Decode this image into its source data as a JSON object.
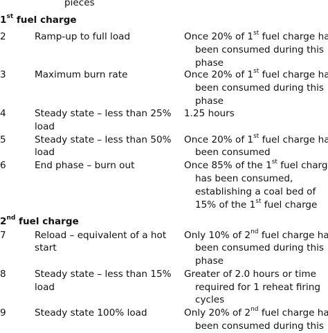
{
  "top_fragment": "pieces",
  "sections": [
    {
      "heading": {
        "pre": "1",
        "sup": "st",
        "post": " fuel charge"
      },
      "rows": [
        {
          "num": "2",
          "desc": [
            "Ramp-up to full load"
          ],
          "cond": [
            {
              "pre": "Once 20% of 1",
              "sup": "st",
              "post": " fuel charge has"
            },
            {
              "pre": "been consumed during this"
            },
            {
              "pre": "phase"
            }
          ]
        },
        {
          "num": "3",
          "desc": [
            "Maximum burn rate"
          ],
          "cond": [
            {
              "pre": "Once 20% of 1",
              "sup": "st",
              "post": " fuel charge has"
            },
            {
              "pre": "been consumed during this"
            },
            {
              "pre": "phase"
            }
          ]
        },
        {
          "num": "4",
          "desc": [
            "Steady state – less than 25%",
            "load"
          ],
          "cond": [
            {
              "pre": "1.25 hours"
            }
          ]
        },
        {
          "num": "5",
          "desc": [
            "Steady state – less than 50%",
            "load"
          ],
          "cond": [
            {
              "pre": "Once 20% of 1",
              "sup": "st",
              "post": " fuel charge has"
            },
            {
              "pre": "been consumed"
            }
          ]
        },
        {
          "num": "6",
          "desc": [
            "End phase – burn out"
          ],
          "cond": [
            {
              "pre": "Once 85% of the 1",
              "sup": "st",
              "post": " fuel charge"
            },
            {
              "pre": "has been consumed,"
            },
            {
              "pre": "establishing a coal bed of"
            },
            {
              "pre": "15% of the 1",
              "sup": "st",
              "post": " fuel charge"
            }
          ]
        }
      ]
    },
    {
      "heading": {
        "pre": "2",
        "sup": "nd",
        "post": " fuel charge"
      },
      "rows": [
        {
          "num": "7",
          "desc": [
            "Reload – equivalent of a hot",
            "start"
          ],
          "cond": [
            {
              "pre": "Only 10% of 2",
              "sup": "nd",
              "post": " fuel charge has"
            },
            {
              "pre": "been consumed during this"
            },
            {
              "pre": "phase"
            }
          ]
        },
        {
          "num": "8",
          "desc": [
            "Steady state – less than 15%",
            "load"
          ],
          "cond": [
            {
              "pre": "Greater of 2.0 hours or time"
            },
            {
              "pre": "required for 1 reheat firing"
            },
            {
              "pre": "cycles"
            }
          ]
        },
        {
          "num": "9",
          "desc": [
            "Steady state 100% load"
          ],
          "cond": [
            {
              "pre": "Only 20% of 2",
              "sup": "nd",
              "post": " fuel charge has"
            },
            {
              "pre": "been consumed during this"
            }
          ]
        }
      ]
    }
  ]
}
